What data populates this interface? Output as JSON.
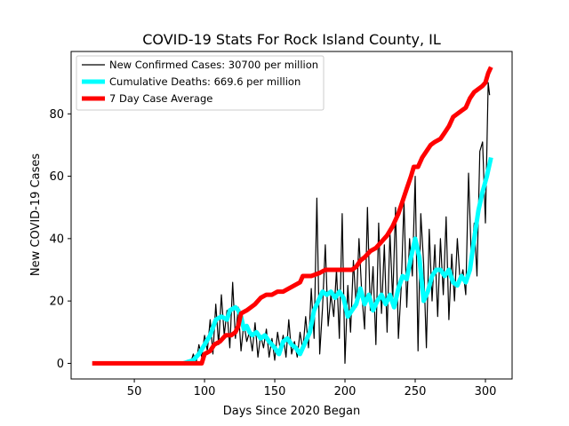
{
  "chart_data": {
    "type": "line",
    "title": "COVID-19 Stats For Rock Island County, IL",
    "xlabel": "Days Since 2020 Began",
    "ylabel": "New COVID-19 Cases",
    "xlim": [
      5,
      319
    ],
    "ylim": [
      -5,
      100
    ],
    "xticks": [
      50,
      100,
      150,
      200,
      250,
      300
    ],
    "yticks": [
      0,
      20,
      40,
      60,
      80
    ],
    "grid": false,
    "legend_position": "upper-left",
    "series": [
      {
        "name": "New Confirmed Cases: 30700 per million",
        "color": "#000000",
        "points": [
          [
            85,
            0
          ],
          [
            88,
            1
          ],
          [
            90,
            0
          ],
          [
            92,
            3
          ],
          [
            94,
            0
          ],
          [
            96,
            6
          ],
          [
            98,
            2
          ],
          [
            100,
            9
          ],
          [
            102,
            4
          ],
          [
            104,
            14
          ],
          [
            106,
            3
          ],
          [
            108,
            19
          ],
          [
            110,
            6
          ],
          [
            112,
            22
          ],
          [
            114,
            9
          ],
          [
            116,
            17
          ],
          [
            118,
            5
          ],
          [
            120,
            26
          ],
          [
            122,
            8
          ],
          [
            124,
            18
          ],
          [
            126,
            4
          ],
          [
            128,
            13
          ],
          [
            130,
            7
          ],
          [
            132,
            10
          ],
          [
            134,
            4
          ],
          [
            136,
            13
          ],
          [
            138,
            2
          ],
          [
            140,
            9
          ],
          [
            142,
            5
          ],
          [
            144,
            11
          ],
          [
            146,
            2
          ],
          [
            148,
            8
          ],
          [
            150,
            1
          ],
          [
            152,
            10
          ],
          [
            154,
            4
          ],
          [
            156,
            9
          ],
          [
            158,
            2
          ],
          [
            160,
            14
          ],
          [
            162,
            3
          ],
          [
            164,
            7
          ],
          [
            166,
            2
          ],
          [
            168,
            10
          ],
          [
            170,
            4
          ],
          [
            172,
            15
          ],
          [
            174,
            5
          ],
          [
            176,
            24
          ],
          [
            178,
            8
          ],
          [
            180,
            53
          ],
          [
            182,
            3
          ],
          [
            184,
            18
          ],
          [
            186,
            38
          ],
          [
            188,
            12
          ],
          [
            190,
            22
          ],
          [
            192,
            15
          ],
          [
            194,
            30
          ],
          [
            196,
            8
          ],
          [
            198,
            48
          ],
          [
            200,
            0
          ],
          [
            202,
            25
          ],
          [
            204,
            10
          ],
          [
            206,
            33
          ],
          [
            208,
            18
          ],
          [
            210,
            40
          ],
          [
            212,
            22
          ],
          [
            214,
            11
          ],
          [
            216,
            50
          ],
          [
            218,
            17
          ],
          [
            220,
            31
          ],
          [
            222,
            6
          ],
          [
            224,
            45
          ],
          [
            226,
            16
          ],
          [
            228,
            38
          ],
          [
            230,
            10
          ],
          [
            232,
            42
          ],
          [
            234,
            20
          ],
          [
            236,
            50
          ],
          [
            238,
            8
          ],
          [
            240,
            24
          ],
          [
            242,
            52
          ],
          [
            244,
            18
          ],
          [
            246,
            40
          ],
          [
            248,
            28
          ],
          [
            250,
            60
          ],
          [
            252,
            4
          ],
          [
            254,
            48
          ],
          [
            256,
            32
          ],
          [
            258,
            5
          ],
          [
            260,
            43
          ],
          [
            262,
            20
          ],
          [
            264,
            38
          ],
          [
            266,
            15
          ],
          [
            268,
            40
          ],
          [
            270,
            22
          ],
          [
            272,
            47
          ],
          [
            274,
            14
          ],
          [
            276,
            35
          ],
          [
            278,
            20
          ],
          [
            280,
            40
          ],
          [
            282,
            26
          ],
          [
            284,
            30
          ],
          [
            286,
            22
          ],
          [
            288,
            61
          ],
          [
            290,
            33
          ],
          [
            292,
            45
          ],
          [
            294,
            28
          ],
          [
            296,
            68
          ],
          [
            298,
            71
          ],
          [
            300,
            45
          ],
          [
            302,
            90
          ],
          [
            303,
            86
          ]
        ]
      },
      {
        "name": "Cumulative Deaths: 669.6 per million",
        "color": "#00ffff",
        "points": [
          [
            85,
            0
          ],
          [
            92,
            1
          ],
          [
            96,
            3
          ],
          [
            100,
            6
          ],
          [
            104,
            9
          ],
          [
            108,
            14
          ],
          [
            112,
            15
          ],
          [
            116,
            14
          ],
          [
            118,
            17
          ],
          [
            122,
            18
          ],
          [
            124,
            17
          ],
          [
            126,
            15
          ],
          [
            128,
            11
          ],
          [
            130,
            12
          ],
          [
            132,
            10
          ],
          [
            134,
            9
          ],
          [
            137,
            10
          ],
          [
            140,
            8
          ],
          [
            143,
            9
          ],
          [
            146,
            7
          ],
          [
            150,
            5
          ],
          [
            153,
            3
          ],
          [
            156,
            7
          ],
          [
            159,
            8
          ],
          [
            162,
            6
          ],
          [
            165,
            5
          ],
          [
            168,
            3
          ],
          [
            172,
            7
          ],
          [
            175,
            10
          ],
          [
            178,
            17
          ],
          [
            181,
            20
          ],
          [
            184,
            23
          ],
          [
            187,
            22
          ],
          [
            190,
            23
          ],
          [
            193,
            21
          ],
          [
            196,
            23
          ],
          [
            199,
            21
          ],
          [
            202,
            15
          ],
          [
            205,
            17
          ],
          [
            208,
            19
          ],
          [
            211,
            24
          ],
          [
            214,
            19
          ],
          [
            217,
            22
          ],
          [
            220,
            17
          ],
          [
            223,
            20
          ],
          [
            226,
            22
          ],
          [
            229,
            19
          ],
          [
            232,
            22
          ],
          [
            235,
            18
          ],
          [
            238,
            24
          ],
          [
            241,
            28
          ],
          [
            244,
            27
          ],
          [
            247,
            34
          ],
          [
            250,
            40
          ],
          [
            253,
            34
          ],
          [
            256,
            20
          ],
          [
            259,
            23
          ],
          [
            262,
            28
          ],
          [
            265,
            30
          ],
          [
            268,
            30
          ],
          [
            271,
            28
          ],
          [
            274,
            30
          ],
          [
            277,
            26
          ],
          [
            280,
            25
          ],
          [
            283,
            28
          ],
          [
            286,
            26
          ],
          [
            289,
            30
          ],
          [
            292,
            40
          ],
          [
            295,
            49
          ],
          [
            298,
            55
          ],
          [
            301,
            60
          ],
          [
            304,
            66
          ]
        ]
      },
      {
        "name": "7 Day Case Average",
        "color": "#ff0000",
        "points": [
          [
            20,
            0
          ],
          [
            98,
            0
          ],
          [
            100,
            3
          ],
          [
            104,
            4
          ],
          [
            107,
            6
          ],
          [
            111,
            7
          ],
          [
            115,
            9
          ],
          [
            119,
            9
          ],
          [
            122,
            10
          ],
          [
            124,
            12
          ],
          [
            126,
            16
          ],
          [
            130,
            17
          ],
          [
            133,
            18
          ],
          [
            136,
            19
          ],
          [
            140,
            21
          ],
          [
            144,
            22
          ],
          [
            148,
            22
          ],
          [
            152,
            23
          ],
          [
            156,
            23
          ],
          [
            160,
            24
          ],
          [
            164,
            25
          ],
          [
            168,
            26
          ],
          [
            170,
            28
          ],
          [
            176,
            28
          ],
          [
            182,
            29
          ],
          [
            186,
            30
          ],
          [
            192,
            30
          ],
          [
            198,
            30
          ],
          [
            205,
            30
          ],
          [
            208,
            31
          ],
          [
            211,
            33
          ],
          [
            214,
            34
          ],
          [
            218,
            36
          ],
          [
            222,
            37
          ],
          [
            226,
            39
          ],
          [
            230,
            41
          ],
          [
            234,
            44
          ],
          [
            238,
            48
          ],
          [
            241,
            52
          ],
          [
            244,
            56
          ],
          [
            247,
            60
          ],
          [
            249,
            63
          ],
          [
            252,
            63
          ],
          [
            255,
            66
          ],
          [
            258,
            68
          ],
          [
            261,
            70
          ],
          [
            264,
            71
          ],
          [
            268,
            72
          ],
          [
            271,
            74
          ],
          [
            274,
            76
          ],
          [
            277,
            79
          ],
          [
            280,
            80
          ],
          [
            283,
            81
          ],
          [
            286,
            82
          ],
          [
            289,
            85
          ],
          [
            292,
            87
          ],
          [
            295,
            88
          ],
          [
            298,
            89
          ],
          [
            300,
            90
          ],
          [
            302,
            93
          ],
          [
            304,
            95
          ]
        ]
      }
    ]
  }
}
